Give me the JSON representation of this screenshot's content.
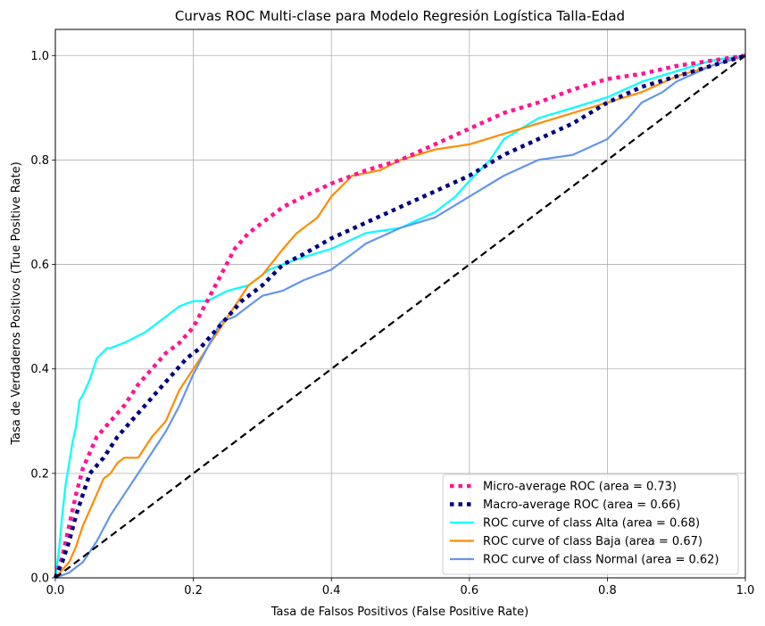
{
  "chart_data": {
    "type": "line",
    "title": "Curvas ROC Multi-clase para Modelo Regresión Logística Talla-Edad",
    "xlabel": "Tasa de Falsos Positivos (False Positive Rate)",
    "ylabel": "Tasa de Verdaderos Positivos (True Positive Rate)",
    "xlim": [
      0.0,
      1.0
    ],
    "ylim": [
      0.0,
      1.05
    ],
    "xticks": [
      "0.0",
      "0.2",
      "0.4",
      "0.6",
      "0.8",
      "1.0"
    ],
    "yticks": [
      "0.0",
      "0.2",
      "0.4",
      "0.6",
      "0.8",
      "1.0"
    ],
    "grid": true,
    "legend_position": "lower right",
    "series": [
      {
        "name": "Micro-average ROC (area = 0.73)",
        "color": "#ff1493",
        "style": "dotted",
        "x": [
          0,
          0.01,
          0.02,
          0.03,
          0.04,
          0.05,
          0.06,
          0.08,
          0.1,
          0.12,
          0.14,
          0.16,
          0.18,
          0.2,
          0.22,
          0.24,
          0.26,
          0.28,
          0.3,
          0.33,
          0.36,
          0.4,
          0.45,
          0.5,
          0.55,
          0.6,
          0.65,
          0.7,
          0.75,
          0.8,
          0.85,
          0.9,
          0.95,
          1.0
        ],
        "y": [
          0,
          0.04,
          0.1,
          0.16,
          0.21,
          0.24,
          0.27,
          0.3,
          0.33,
          0.37,
          0.4,
          0.43,
          0.45,
          0.48,
          0.53,
          0.58,
          0.63,
          0.66,
          0.68,
          0.71,
          0.73,
          0.755,
          0.78,
          0.8,
          0.83,
          0.86,
          0.89,
          0.91,
          0.935,
          0.955,
          0.965,
          0.98,
          0.99,
          1.0
        ]
      },
      {
        "name": "Macro-average ROC (area = 0.66)",
        "color": "#000080",
        "style": "dotted",
        "x": [
          0,
          0.01,
          0.02,
          0.03,
          0.04,
          0.05,
          0.07,
          0.09,
          0.11,
          0.13,
          0.15,
          0.17,
          0.19,
          0.21,
          0.23,
          0.25,
          0.27,
          0.3,
          0.33,
          0.36,
          0.4,
          0.45,
          0.5,
          0.55,
          0.6,
          0.65,
          0.7,
          0.75,
          0.8,
          0.85,
          0.9,
          0.95,
          1.0
        ],
        "y": [
          0,
          0.03,
          0.07,
          0.12,
          0.16,
          0.2,
          0.23,
          0.27,
          0.3,
          0.33,
          0.36,
          0.39,
          0.42,
          0.44,
          0.47,
          0.5,
          0.53,
          0.56,
          0.6,
          0.62,
          0.65,
          0.68,
          0.71,
          0.74,
          0.77,
          0.81,
          0.84,
          0.87,
          0.91,
          0.94,
          0.96,
          0.98,
          1.0
        ]
      },
      {
        "name": "ROC curve of class Alta (area = 0.68)",
        "color": "#00ffff",
        "style": "solid",
        "x": [
          0,
          0.005,
          0.01,
          0.015,
          0.02,
          0.025,
          0.03,
          0.035,
          0.04,
          0.05,
          0.06,
          0.075,
          0.08,
          0.1,
          0.13,
          0.16,
          0.18,
          0.2,
          0.22,
          0.25,
          0.28,
          0.31,
          0.35,
          0.4,
          0.45,
          0.5,
          0.55,
          0.58,
          0.6,
          0.63,
          0.65,
          0.7,
          0.75,
          0.8,
          0.85,
          0.9,
          0.95,
          1.0
        ],
        "y": [
          0,
          0.05,
          0.12,
          0.18,
          0.22,
          0.26,
          0.29,
          0.34,
          0.35,
          0.38,
          0.42,
          0.44,
          0.44,
          0.45,
          0.47,
          0.5,
          0.52,
          0.53,
          0.53,
          0.55,
          0.56,
          0.59,
          0.61,
          0.63,
          0.66,
          0.67,
          0.7,
          0.73,
          0.76,
          0.8,
          0.84,
          0.88,
          0.9,
          0.92,
          0.95,
          0.97,
          0.99,
          1.0
        ]
      },
      {
        "name": "ROC curve of class Baja (area = 0.67)",
        "color": "#ff8c00",
        "style": "solid",
        "x": [
          0,
          0.02,
          0.03,
          0.04,
          0.05,
          0.06,
          0.07,
          0.08,
          0.09,
          0.1,
          0.12,
          0.14,
          0.16,
          0.18,
          0.2,
          0.22,
          0.24,
          0.26,
          0.28,
          0.3,
          0.33,
          0.35,
          0.38,
          0.4,
          0.43,
          0.47,
          0.5,
          0.55,
          0.6,
          0.65,
          0.7,
          0.75,
          0.8,
          0.85,
          0.9,
          0.95,
          1.0
        ],
        "y": [
          0,
          0.03,
          0.06,
          0.1,
          0.13,
          0.16,
          0.19,
          0.2,
          0.22,
          0.23,
          0.23,
          0.27,
          0.3,
          0.36,
          0.4,
          0.44,
          0.48,
          0.52,
          0.56,
          0.58,
          0.63,
          0.66,
          0.69,
          0.73,
          0.77,
          0.78,
          0.8,
          0.82,
          0.83,
          0.85,
          0.87,
          0.89,
          0.91,
          0.93,
          0.96,
          0.98,
          1.0
        ]
      },
      {
        "name": "ROC curve of class Normal (area = 0.62)",
        "color": "#6495ed",
        "style": "solid",
        "x": [
          0,
          0.02,
          0.04,
          0.06,
          0.08,
          0.1,
          0.12,
          0.14,
          0.16,
          0.18,
          0.2,
          0.22,
          0.24,
          0.26,
          0.28,
          0.3,
          0.33,
          0.36,
          0.4,
          0.45,
          0.5,
          0.55,
          0.6,
          0.65,
          0.7,
          0.75,
          0.8,
          0.83,
          0.85,
          0.88,
          0.9,
          0.95,
          1.0
        ],
        "y": [
          0,
          0.01,
          0.03,
          0.07,
          0.12,
          0.16,
          0.2,
          0.24,
          0.28,
          0.33,
          0.39,
          0.44,
          0.49,
          0.5,
          0.52,
          0.54,
          0.55,
          0.57,
          0.59,
          0.64,
          0.67,
          0.69,
          0.73,
          0.77,
          0.8,
          0.81,
          0.84,
          0.88,
          0.91,
          0.93,
          0.95,
          0.98,
          1.0
        ]
      },
      {
        "name": "",
        "color": "#000000",
        "style": "dashed",
        "x": [
          0,
          1
        ],
        "y": [
          0,
          1
        ]
      }
    ]
  }
}
